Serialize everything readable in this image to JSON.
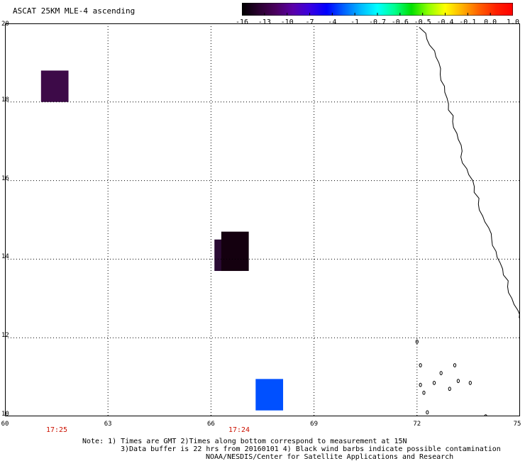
{
  "title": "ASCAT 25KM MLE-4 ascending",
  "colorbar": {
    "colors": [
      "#000000",
      "#2a0030",
      "#4a005e",
      "#5a00a8",
      "#3a00e0",
      "#0000ff",
      "#0060ff",
      "#00b8ff",
      "#00ffff",
      "#00ff90",
      "#00e000",
      "#90ff00",
      "#ffff00",
      "#ffb000",
      "#ff6000",
      "#ff2000",
      "#ff0000"
    ],
    "ticks": [
      "-16",
      "-13",
      "-10",
      "-7",
      "-4",
      "-1",
      "-0.7",
      "-0.6",
      "-0.5",
      "-0.4",
      "-0.1",
      "0.0",
      "1.0"
    ]
  },
  "axes": {
    "y_labels": [
      "20",
      "18",
      "16",
      "14",
      "12",
      "10"
    ],
    "x_labels": [
      "60",
      "63",
      "66",
      "69",
      "72",
      "75"
    ],
    "lat_range": [
      10,
      20
    ],
    "lon_range": [
      60,
      75
    ]
  },
  "times": [
    "17:25",
    "17:24"
  ],
  "cells": [
    {
      "lon0": 61.05,
      "lon1": 61.85,
      "lat0": 18.0,
      "lat1": 18.8,
      "color": "#3d0a48"
    },
    {
      "lon0": 66.1,
      "lon1": 66.9,
      "lat0": 13.7,
      "lat1": 14.5,
      "color": "#2a0a34"
    },
    {
      "lon0": 66.3,
      "lon1": 67.1,
      "lat0": 13.7,
      "lat1": 14.7,
      "color": "#14000f"
    },
    {
      "lon0": 67.3,
      "lon1": 68.1,
      "lat0": 10.15,
      "lat1": 10.95,
      "color": "#0050ff"
    }
  ],
  "notes": [
    "Note: 1) Times are GMT 2)Times along bottom correspond to measurement at 15N",
    "3)Data buffer is 22 hrs from 20160101 4) Black wind barbs indicate possible contamination",
    "NOAA/NESDIS/Center for Satellite Applications and Research"
  ]
}
